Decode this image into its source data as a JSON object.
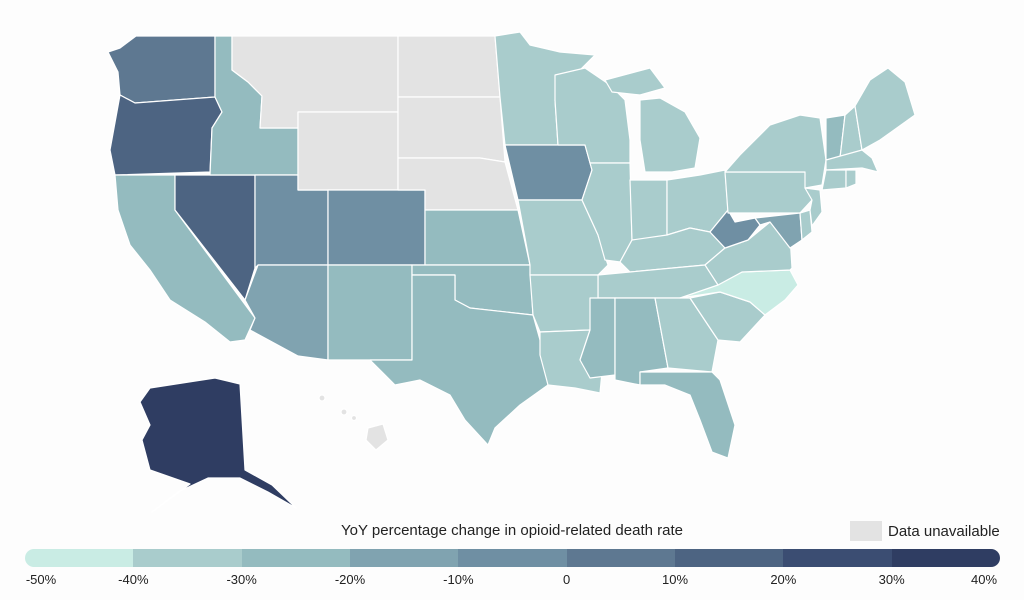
{
  "legend": {
    "title": "YoY percentage change in opioid-related death rate",
    "unavailable_label": "Data unavailable",
    "unavailable_color": "#e3e3e3",
    "colors": [
      "#c9ece4",
      "#a9cccc",
      "#94bbbf",
      "#80a3b0",
      "#6f8fa3",
      "#5e7891",
      "#4d6482",
      "#3b4d72",
      "#2f3d62"
    ],
    "ticks": [
      "-50%",
      "-40%",
      "-30%",
      "-20%",
      "-10%",
      "0",
      "10%",
      "20%",
      "30%",
      "40%"
    ]
  },
  "chart_data": {
    "type": "choropleth",
    "title": "YoY percentage change in opioid-related death rate",
    "scale_min": -50,
    "scale_max": 40,
    "states": [
      {
        "id": "AK",
        "bin": 8
      },
      {
        "id": "WA",
        "bin": 5
      },
      {
        "id": "OR",
        "bin": 6
      },
      {
        "id": "NV",
        "bin": 6
      },
      {
        "id": "CA",
        "bin": 2
      },
      {
        "id": "ID",
        "bin": 2
      },
      {
        "id": "UT",
        "bin": 4
      },
      {
        "id": "AZ",
        "bin": 3
      },
      {
        "id": "CO",
        "bin": 4
      },
      {
        "id": "NM",
        "bin": 2
      },
      {
        "id": "TX",
        "bin": 2
      },
      {
        "id": "KS",
        "bin": 2
      },
      {
        "id": "OK",
        "bin": 2
      },
      {
        "id": "IA",
        "bin": 4
      },
      {
        "id": "MN",
        "bin": 1
      },
      {
        "id": "WI",
        "bin": 1
      },
      {
        "id": "MI",
        "bin": 1
      },
      {
        "id": "IL",
        "bin": 1
      },
      {
        "id": "MO",
        "bin": 1
      },
      {
        "id": "AR",
        "bin": 1
      },
      {
        "id": "LA",
        "bin": 1
      },
      {
        "id": "MS",
        "bin": 2
      },
      {
        "id": "AL",
        "bin": 2
      },
      {
        "id": "GA",
        "bin": 1
      },
      {
        "id": "FL",
        "bin": 2
      },
      {
        "id": "SC",
        "bin": 1
      },
      {
        "id": "NC",
        "bin": 0
      },
      {
        "id": "TN",
        "bin": 1
      },
      {
        "id": "KY",
        "bin": 1
      },
      {
        "id": "IN",
        "bin": 1
      },
      {
        "id": "OH",
        "bin": 1
      },
      {
        "id": "WV",
        "bin": 4
      },
      {
        "id": "VA",
        "bin": 1
      },
      {
        "id": "MD",
        "bin": 3
      },
      {
        "id": "DE",
        "bin": 1
      },
      {
        "id": "PA",
        "bin": 1
      },
      {
        "id": "NJ",
        "bin": 1
      },
      {
        "id": "NY",
        "bin": 1
      },
      {
        "id": "CT",
        "bin": 1
      },
      {
        "id": "RI",
        "bin": 1
      },
      {
        "id": "MA",
        "bin": 1
      },
      {
        "id": "VT",
        "bin": 2
      },
      {
        "id": "NH",
        "bin": 1
      },
      {
        "id": "ME",
        "bin": 1
      },
      {
        "id": "MT",
        "bin": null
      },
      {
        "id": "WY",
        "bin": null
      },
      {
        "id": "ND",
        "bin": null
      },
      {
        "id": "SD",
        "bin": null
      },
      {
        "id": "NE",
        "bin": null
      },
      {
        "id": "HI",
        "bin": null
      }
    ]
  }
}
